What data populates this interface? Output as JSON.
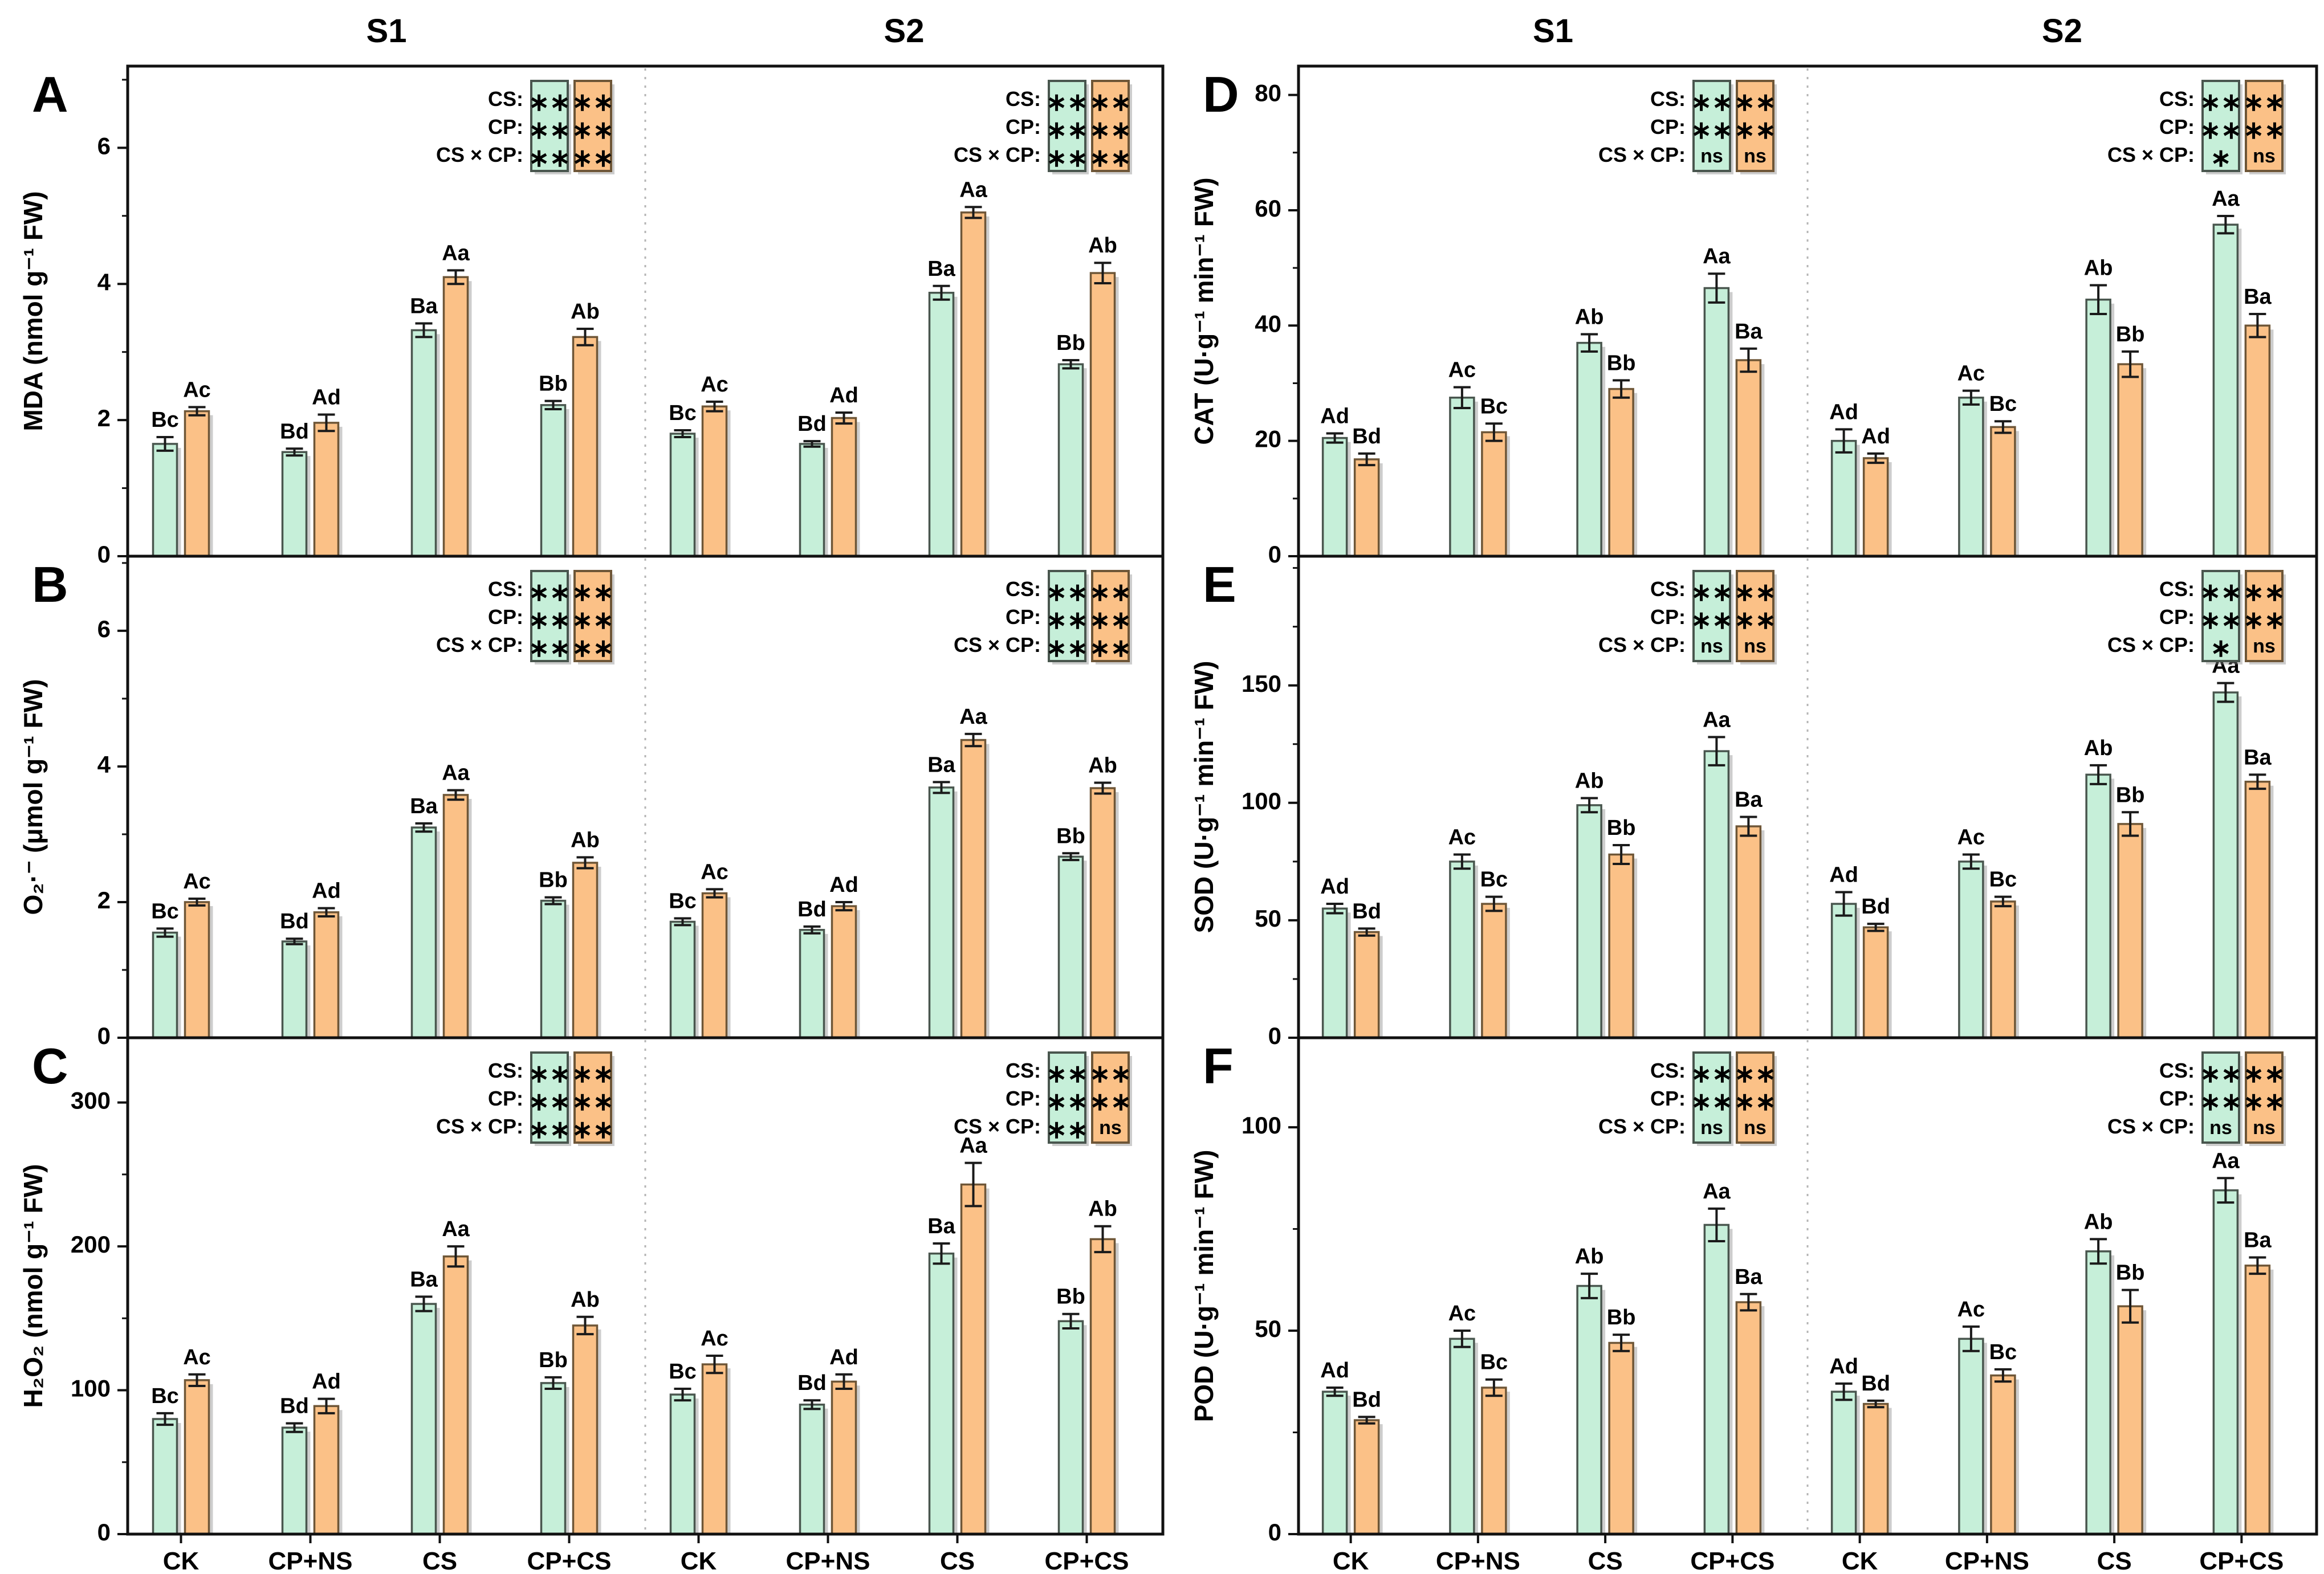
{
  "style": {
    "green_fill": "#c6efd9",
    "green_stroke": "#49564e",
    "orange_fill": "#fbc187",
    "orange_stroke": "#6e5637",
    "error_color": "#1a1a1a",
    "axis_color": "#111111",
    "divider_color": "#b5b5b5",
    "shadow_color": "rgba(130,130,130,0.40)",
    "background": "#ffffff"
  },
  "chart_data": {
    "type": "bar",
    "section_titles": [
      "S1",
      "S2"
    ],
    "categories": [
      "CK",
      "CP+NS",
      "CS",
      "CP+CS"
    ],
    "legend_rows": [
      "CS:",
      "CP:",
      "CS × CP:"
    ],
    "legend_note": "grouped bar chart, 6 panels, two sections per panel, green and orange series with SD error bars and Duncan letters",
    "panels": [
      {
        "letter": "A",
        "ylabel": "MDA (nmol g⁻¹ FW)",
        "ylim": [
          0,
          7.2
        ],
        "yticks": [
          0,
          2,
          4,
          6
        ],
        "yminor": 1,
        "sections": [
          {
            "title": "S1",
            "legend": {
              "green": [
                "**",
                "**",
                "**"
              ],
              "orange": [
                "**",
                "**",
                "**"
              ]
            },
            "series": [
              {
                "color": "green",
                "values": [
                  1.65,
                  1.53,
                  3.32,
                  2.22
                ],
                "errors": [
                  0.1,
                  0.05,
                  0.1,
                  0.06
                ],
                "labels": [
                  "Bc",
                  "Bd",
                  "Ba",
                  "Bb"
                ]
              },
              {
                "color": "orange",
                "values": [
                  2.13,
                  1.96,
                  4.1,
                  3.22
                ],
                "errors": [
                  0.06,
                  0.12,
                  0.1,
                  0.12
                ],
                "labels": [
                  "Ac",
                  "Ad",
                  "Aa",
                  "Ab"
                ]
              }
            ]
          },
          {
            "title": "S2",
            "legend": {
              "green": [
                "**",
                "**",
                "**"
              ],
              "orange": [
                "**",
                "**",
                "**"
              ]
            },
            "series": [
              {
                "color": "green",
                "values": [
                  1.8,
                  1.65,
                  3.87,
                  2.82
                ],
                "errors": [
                  0.05,
                  0.04,
                  0.1,
                  0.06
                ],
                "labels": [
                  "Bc",
                  "Bd",
                  "Ba",
                  "Bb"
                ]
              },
              {
                "color": "orange",
                "values": [
                  2.2,
                  2.03,
                  5.05,
                  4.16
                ],
                "errors": [
                  0.07,
                  0.08,
                  0.08,
                  0.15
                ],
                "labels": [
                  "Ac",
                  "Ad",
                  "Aa",
                  "Ab"
                ]
              }
            ]
          }
        ]
      },
      {
        "letter": "B",
        "ylabel": "O₂·⁻ (μmol g⁻¹ FW)",
        "ylim": [
          0,
          7.1
        ],
        "yticks": [
          0,
          2,
          4,
          6
        ],
        "yminor": 1,
        "sections": [
          {
            "title": "S1",
            "legend": {
              "green": [
                "**",
                "**",
                "**"
              ],
              "orange": [
                "**",
                "**",
                "**"
              ]
            },
            "series": [
              {
                "color": "green",
                "values": [
                  1.55,
                  1.42,
                  3.1,
                  2.02
                ],
                "errors": [
                  0.06,
                  0.04,
                  0.06,
                  0.05
                ],
                "labels": [
                  "Bc",
                  "Bd",
                  "Ba",
                  "Bb"
                ]
              },
              {
                "color": "orange",
                "values": [
                  2.0,
                  1.85,
                  3.58,
                  2.58
                ],
                "errors": [
                  0.05,
                  0.06,
                  0.07,
                  0.08
                ],
                "labels": [
                  "Ac",
                  "Ad",
                  "Aa",
                  "Ab"
                ]
              }
            ]
          },
          {
            "title": "S2",
            "legend": {
              "green": [
                "**",
                "**",
                "**"
              ],
              "orange": [
                "**",
                "**",
                "**"
              ]
            },
            "series": [
              {
                "color": "green",
                "values": [
                  1.71,
                  1.59,
                  3.69,
                  2.67
                ],
                "errors": [
                  0.05,
                  0.05,
                  0.08,
                  0.05
                ],
                "labels": [
                  "Bc",
                  "Bd",
                  "Ba",
                  "Bb"
                ]
              },
              {
                "color": "orange",
                "values": [
                  2.13,
                  1.94,
                  4.39,
                  3.68
                ],
                "errors": [
                  0.06,
                  0.06,
                  0.09,
                  0.08
                ],
                "labels": [
                  "Ac",
                  "Ad",
                  "Aa",
                  "Ab"
                ]
              }
            ]
          }
        ]
      },
      {
        "letter": "C",
        "ylabel": "H₂O₂ (nmol g⁻¹ FW)",
        "ylim": [
          0,
          345
        ],
        "yticks": [
          0,
          100,
          200,
          300
        ],
        "yminor": 50,
        "sections": [
          {
            "title": "S1",
            "legend": {
              "green": [
                "**",
                "**",
                "**"
              ],
              "orange": [
                "**",
                "**",
                "**"
              ]
            },
            "series": [
              {
                "color": "green",
                "values": [
                  80,
                  74,
                  160,
                  105
                ],
                "errors": [
                  4,
                  3,
                  5,
                  4
                ],
                "labels": [
                  "Bc",
                  "Bd",
                  "Ba",
                  "Bb"
                ]
              },
              {
                "color": "orange",
                "values": [
                  107,
                  89,
                  193,
                  145
                ],
                "errors": [
                  4,
                  5,
                  7,
                  6
                ],
                "labels": [
                  "Ac",
                  "Ad",
                  "Aa",
                  "Ab"
                ]
              }
            ]
          },
          {
            "title": "S2",
            "legend": {
              "green": [
                "**",
                "**",
                "**"
              ],
              "orange": [
                "**",
                "**",
                "ns"
              ]
            },
            "series": [
              {
                "color": "green",
                "values": [
                  97,
                  90,
                  195,
                  148
                ],
                "errors": [
                  4,
                  3,
                  7,
                  5
                ],
                "labels": [
                  "Bc",
                  "Bd",
                  "Ba",
                  "Bb"
                ]
              },
              {
                "color": "orange",
                "values": [
                  118,
                  106,
                  243,
                  205
                ],
                "errors": [
                  6,
                  5,
                  15,
                  9
                ],
                "labels": [
                  "Ac",
                  "Ad",
                  "Aa",
                  "Ab"
                ]
              }
            ]
          }
        ]
      },
      {
        "letter": "D",
        "ylabel": "CAT (U·g⁻¹ min⁻¹ FW)",
        "ylim": [
          0,
          85
        ],
        "yticks": [
          0,
          20,
          40,
          60,
          80
        ],
        "yminor": 10,
        "sections": [
          {
            "title": "S1",
            "legend": {
              "green": [
                "**",
                "**",
                "ns"
              ],
              "orange": [
                "**",
                "**",
                "ns"
              ]
            },
            "series": [
              {
                "color": "green",
                "values": [
                  20.5,
                  27.5,
                  37,
                  46.5
                ],
                "errors": [
                  0.8,
                  1.8,
                  1.5,
                  2.5
                ],
                "labels": [
                  "Ad",
                  "Ac",
                  "Ab",
                  "Aa"
                ]
              },
              {
                "color": "orange",
                "values": [
                  16.8,
                  21.5,
                  29,
                  34
                ],
                "errors": [
                  1,
                  1.5,
                  1.5,
                  2
                ],
                "labels": [
                  "Bd",
                  "Bc",
                  "Bb",
                  "Ba"
                ]
              }
            ]
          },
          {
            "title": "S2",
            "legend": {
              "green": [
                "**",
                "**",
                "*"
              ],
              "orange": [
                "**",
                "**",
                "ns"
              ]
            },
            "series": [
              {
                "color": "green",
                "values": [
                  20,
                  27.5,
                  44.5,
                  57.5
                ],
                "errors": [
                  2,
                  1.2,
                  2.5,
                  1.5
                ],
                "labels": [
                  "Ad",
                  "Ac",
                  "Ab",
                  "Aa"
                ]
              },
              {
                "color": "orange",
                "values": [
                  17,
                  22.4,
                  33.3,
                  40
                ],
                "errors": [
                  0.8,
                  1,
                  2.2,
                  2
                ],
                "labels": [
                  "Ad",
                  "Bc",
                  "Bb",
                  "Ba"
                ]
              }
            ]
          }
        ]
      },
      {
        "letter": "E",
        "ylabel": "SOD (U·g⁻¹ min⁻¹ FW)",
        "ylim": [
          0,
          205
        ],
        "yticks": [
          0,
          50,
          100,
          150
        ],
        "yminor": 25,
        "sections": [
          {
            "title": "S1",
            "legend": {
              "green": [
                "**",
                "**",
                "ns"
              ],
              "orange": [
                "**",
                "**",
                "ns"
              ]
            },
            "series": [
              {
                "color": "green",
                "values": [
                  55,
                  75,
                  99,
                  122
                ],
                "errors": [
                  2,
                  3,
                  3,
                  6
                ],
                "labels": [
                  "Ad",
                  "Ac",
                  "Ab",
                  "Aa"
                ]
              },
              {
                "color": "orange",
                "values": [
                  45,
                  57,
                  78,
                  90
                ],
                "errors": [
                  1.5,
                  3,
                  4,
                  4
                ],
                "labels": [
                  "Bd",
                  "Bc",
                  "Bb",
                  "Ba"
                ]
              }
            ]
          },
          {
            "title": "S2",
            "legend": {
              "green": [
                "**",
                "**",
                "*"
              ],
              "orange": [
                "**",
                "**",
                "ns"
              ]
            },
            "series": [
              {
                "color": "green",
                "values": [
                  57,
                  75,
                  112,
                  147
                ],
                "errors": [
                  5,
                  3,
                  4,
                  4
                ],
                "labels": [
                  "Ad",
                  "Ac",
                  "Ab",
                  "Aa"
                ]
              },
              {
                "color": "orange",
                "values": [
                  47,
                  58,
                  91,
                  109
                ],
                "errors": [
                  1.5,
                  2,
                  5,
                  3
                ],
                "labels": [
                  "Bd",
                  "Bc",
                  "Bb",
                  "Ba"
                ]
              }
            ]
          }
        ]
      },
      {
        "letter": "F",
        "ylabel": "POD (U·g⁻¹ min⁻¹ FW)",
        "ylim": [
          0,
          122
        ],
        "yticks": [
          0,
          50,
          100
        ],
        "yminor": 25,
        "sections": [
          {
            "title": "S1",
            "legend": {
              "green": [
                "**",
                "**",
                "ns"
              ],
              "orange": [
                "**",
                "**",
                "ns"
              ]
            },
            "series": [
              {
                "color": "green",
                "values": [
                  35,
                  48,
                  61,
                  76
                ],
                "errors": [
                  1,
                  2,
                  3,
                  4
                ],
                "labels": [
                  "Ad",
                  "Ac",
                  "Ab",
                  "Aa"
                ]
              },
              {
                "color": "orange",
                "values": [
                  28,
                  36,
                  47,
                  57
                ],
                "errors": [
                  0.8,
                  2,
                  2,
                  2
                ],
                "labels": [
                  "Bd",
                  "Bc",
                  "Bb",
                  "Ba"
                ]
              }
            ]
          },
          {
            "title": "S2",
            "legend": {
              "green": [
                "**",
                "**",
                "ns"
              ],
              "orange": [
                "**",
                "**",
                "ns"
              ]
            },
            "series": [
              {
                "color": "green",
                "values": [
                  35,
                  48,
                  69.5,
                  84.5
                ],
                "errors": [
                  2,
                  3,
                  3,
                  3
                ],
                "labels": [
                  "Ad",
                  "Ac",
                  "Ab",
                  "Aa"
                ]
              },
              {
                "color": "orange",
                "values": [
                  32,
                  39,
                  56,
                  66
                ],
                "errors": [
                  0.8,
                  1.5,
                  4,
                  2
                ],
                "labels": [
                  "Bd",
                  "Bc",
                  "Bb",
                  "Ba"
                ]
              }
            ]
          }
        ]
      }
    ]
  }
}
